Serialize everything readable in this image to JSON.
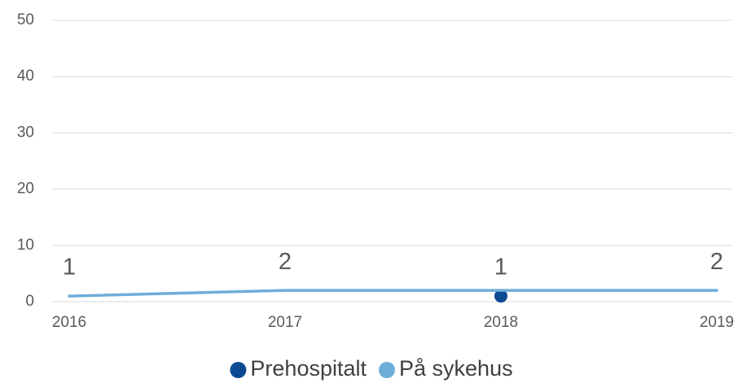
{
  "chart_data": {
    "type": "line",
    "categories": [
      "2016",
      "2017",
      "2018",
      "2019"
    ],
    "series": [
      {
        "name": "Prehospitalt",
        "color": "#0d4a94",
        "values": [
          null,
          null,
          1,
          null
        ]
      },
      {
        "name": "På sykehus",
        "color": "#6fadd9",
        "values": [
          1,
          2,
          2,
          2
        ]
      }
    ],
    "ylim": [
      0,
      50
    ],
    "yticks": [
      0,
      10,
      20,
      30,
      40,
      50
    ],
    "grid": true,
    "legend": "bottom"
  }
}
